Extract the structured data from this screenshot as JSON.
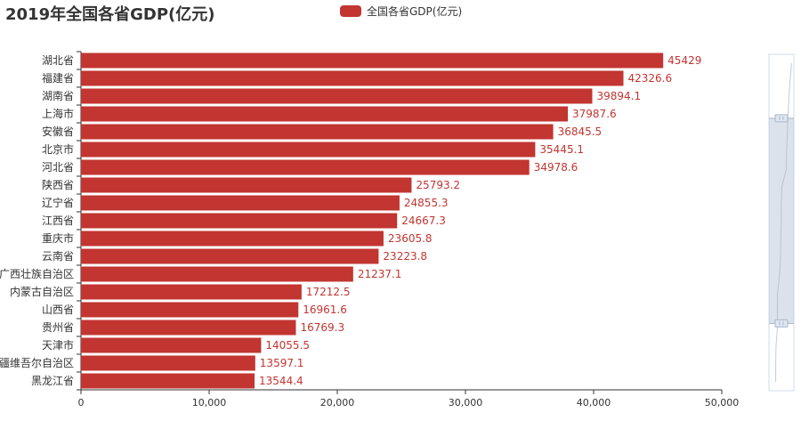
{
  "chart_data": {
    "type": "bar",
    "orientation": "horizontal",
    "title": "2019年全国各省GDP(亿元)",
    "legend": {
      "position": "top-center"
    },
    "categories": [
      "湖北省",
      "福建省",
      "湖南省",
      "上海市",
      "安徽省",
      "北京市",
      "河北省",
      "陕西省",
      "辽宁省",
      "江西省",
      "重庆市",
      "云南省",
      "广西壮族自治区",
      "内蒙古自治区",
      "山西省",
      "贵州省",
      "天津市",
      "新疆维吾尔自治区",
      "黑龙江省"
    ],
    "series": [
      {
        "name": "全国各省GDP(亿元)",
        "color": "#c23531",
        "values": [
          45429,
          42326.6,
          39894.1,
          37987.6,
          36845.5,
          35445.1,
          34978.6,
          25793.2,
          24855.3,
          24667.3,
          23605.8,
          23223.8,
          21237.1,
          17212.5,
          16961.6,
          16769.3,
          14055.5,
          13597.1,
          13544.4
        ],
        "labels": [
          "45429",
          "42326.6",
          "39894.1",
          "37987.6",
          "36845.5",
          "35445.1",
          "34978.6",
          "25793.2",
          "24855.3",
          "24667.3",
          "23605.8",
          "23223.8",
          "21237.1",
          "17212.5",
          "16961.6",
          "16769.3",
          "14055.5",
          "13597.1",
          "13544.4"
        ]
      }
    ],
    "xlim": [
      0,
      50000
    ],
    "xticks": [
      0,
      10000,
      20000,
      30000,
      40000,
      50000
    ],
    "xtick_labels": [
      "0",
      "10,000",
      "20,000",
      "30,000",
      "40,000",
      "50,000"
    ],
    "grid": false,
    "datazoom": {
      "orientation": "vertical",
      "range": [
        0.19,
        0.8
      ]
    }
  }
}
